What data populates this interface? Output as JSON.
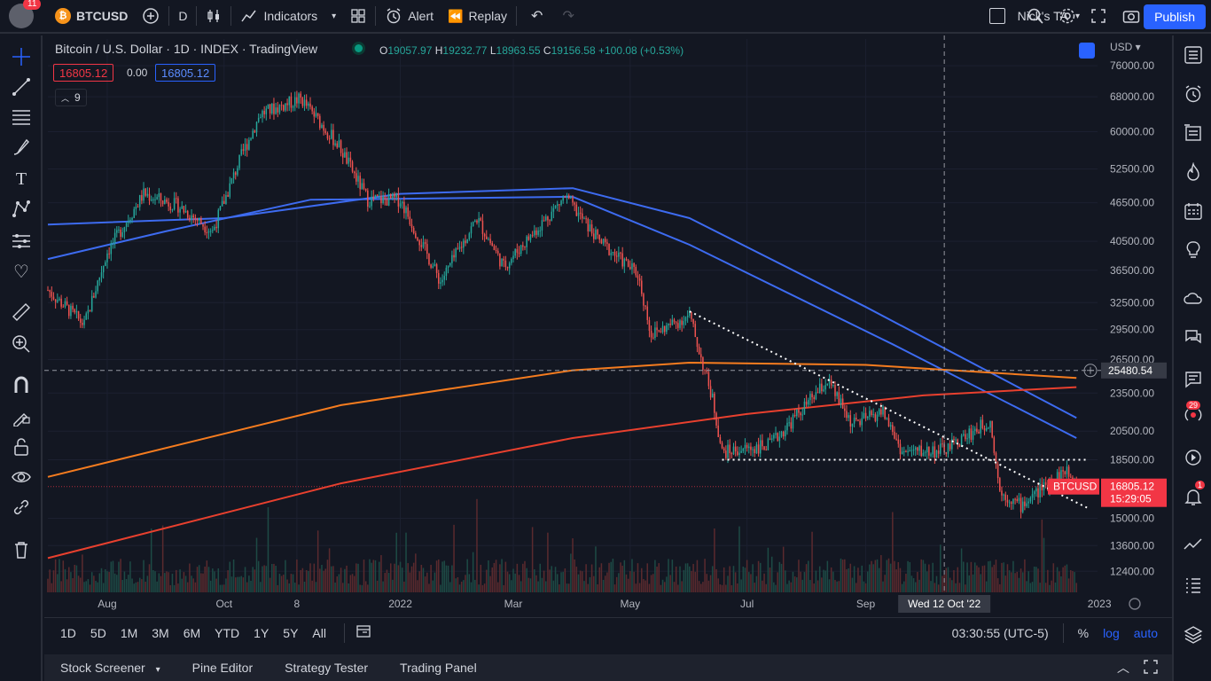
{
  "topbar": {
    "avatar_badge": "11",
    "symbol": "BTCUSD",
    "interval": "D",
    "indicators_label": "Indicators",
    "alert_label": "Alert",
    "replay_label": "Replay",
    "layout_name": "Nick's TA",
    "publish_label": "Publish"
  },
  "legend": {
    "title": "Bitcoin / U.S. Dollar · 1D · INDEX · TradingView",
    "o_key": "O",
    "o": "19057.97",
    "h_key": "H",
    "h": "19232.77",
    "l_key": "L",
    "l": "18963.55",
    "c_key": "C",
    "c": "19156.58",
    "change": "+100.08 (+0.53%)",
    "sell_price": "16805.12",
    "spread": "0.00",
    "buy_price": "16805.12",
    "indicator_count": "9"
  },
  "price_axis": {
    "currency": "USD",
    "ticks": [
      "76000.00",
      "68000.00",
      "60000.00",
      "52500.00",
      "46500.00",
      "40500.00",
      "36500.00",
      "32500.00",
      "29500.00",
      "26500.00",
      "23500.00",
      "20500.00",
      "18500.00",
      "15000.00",
      "13600.00",
      "12400.00"
    ],
    "crosshair_price": "25480.54",
    "symbol_tag": "BTCUSD",
    "last_price": "16805.12",
    "countdown": "15:29:05"
  },
  "time_axis": {
    "ticks": [
      "Aug",
      "Oct",
      "8",
      "2022",
      "Mar",
      "May",
      "Jul",
      "Sep",
      "2023"
    ],
    "crosshair_date": "Wed 12 Oct '22"
  },
  "bottom": {
    "ranges": [
      "1D",
      "5D",
      "1M",
      "3M",
      "6M",
      "YTD",
      "1Y",
      "5Y",
      "All"
    ],
    "clock": "03:30:55 (UTC-5)",
    "percent": "%",
    "log": "log",
    "auto": "auto"
  },
  "panels": {
    "stock_screener": "Stock Screener",
    "pine_editor": "Pine Editor",
    "strategy_tester": "Strategy Tester",
    "trading_panel": "Trading Panel"
  },
  "right_badges": {
    "streams": "29",
    "alerts": "1"
  },
  "colors": {
    "up": "#26a69a",
    "down": "#ef5350",
    "ma_blue": "#3d6bf0",
    "ma_orange": "#f57c1f",
    "ma_red": "#e8402e",
    "accent": "#2962ff"
  },
  "chart_data": {
    "type": "candlestick",
    "symbol": "BTCUSD",
    "interval": "1D",
    "x_range": [
      "2021-07-01",
      "2022-12-31"
    ],
    "y_scale": "log",
    "y_range": [
      11500,
      80000
    ],
    "close_path": [
      {
        "date": "2021-07-01",
        "value": 34000
      },
      {
        "date": "2021-07-20",
        "value": 30000
      },
      {
        "date": "2021-08-01",
        "value": 39000
      },
      {
        "date": "2021-08-20",
        "value": 48000
      },
      {
        "date": "2021-09-07",
        "value": 46000
      },
      {
        "date": "2021-09-25",
        "value": 42000
      },
      {
        "date": "2021-10-10",
        "value": 55000
      },
      {
        "date": "2021-10-20",
        "value": 64000
      },
      {
        "date": "2021-11-10",
        "value": 67500
      },
      {
        "date": "2021-11-30",
        "value": 57000
      },
      {
        "date": "2021-12-15",
        "value": 47000
      },
      {
        "date": "2022-01-01",
        "value": 47000
      },
      {
        "date": "2022-01-22",
        "value": 35000
      },
      {
        "date": "2022-02-10",
        "value": 44000
      },
      {
        "date": "2022-02-24",
        "value": 37000
      },
      {
        "date": "2022-03-28",
        "value": 47500
      },
      {
        "date": "2022-04-15",
        "value": 40500
      },
      {
        "date": "2022-05-05",
        "value": 36000
      },
      {
        "date": "2022-05-12",
        "value": 29000
      },
      {
        "date": "2022-06-01",
        "value": 31000
      },
      {
        "date": "2022-06-13",
        "value": 23000
      },
      {
        "date": "2022-06-18",
        "value": 19000
      },
      {
        "date": "2022-07-13",
        "value": 19500
      },
      {
        "date": "2022-08-12",
        "value": 24500
      },
      {
        "date": "2022-08-25",
        "value": 21000
      },
      {
        "date": "2022-09-10",
        "value": 22000
      },
      {
        "date": "2022-09-20",
        "value": 19000
      },
      {
        "date": "2022-10-12",
        "value": 19150
      },
      {
        "date": "2022-11-05",
        "value": 21300
      },
      {
        "date": "2022-11-10",
        "value": 16500
      },
      {
        "date": "2022-11-21",
        "value": 15700
      },
      {
        "date": "2022-12-05",
        "value": 17000
      },
      {
        "date": "2022-12-14",
        "value": 17800
      },
      {
        "date": "2022-12-20",
        "value": 16805
      }
    ],
    "moving_averages": [
      {
        "color": "blue",
        "points": [
          {
            "date": "2021-07-01",
            "value": 43000
          },
          {
            "date": "2021-10-01",
            "value": 44000
          },
          {
            "date": "2022-01-01",
            "value": 48000
          },
          {
            "date": "2022-04-01",
            "value": 49000
          },
          {
            "date": "2022-06-01",
            "value": 44000
          },
          {
            "date": "2022-09-01",
            "value": 32000
          },
          {
            "date": "2022-12-20",
            "value": 21500
          }
        ]
      },
      {
        "color": "blue",
        "points": [
          {
            "date": "2021-07-01",
            "value": 38000
          },
          {
            "date": "2021-09-01",
            "value": 42000
          },
          {
            "date": "2021-11-15",
            "value": 47000
          },
          {
            "date": "2022-04-01",
            "value": 47500
          },
          {
            "date": "2022-06-01",
            "value": 40000
          },
          {
            "date": "2022-09-15",
            "value": 28000
          },
          {
            "date": "2022-12-20",
            "value": 20000
          }
        ]
      },
      {
        "color": "orange",
        "points": [
          {
            "date": "2021-07-01",
            "value": 17400
          },
          {
            "date": "2021-12-01",
            "value": 22500
          },
          {
            "date": "2022-04-01",
            "value": 25500
          },
          {
            "date": "2022-06-01",
            "value": 26200
          },
          {
            "date": "2022-09-01",
            "value": 26000
          },
          {
            "date": "2022-12-20",
            "value": 24800
          }
        ]
      },
      {
        "color": "red",
        "points": [
          {
            "date": "2021-07-01",
            "value": 13000
          },
          {
            "date": "2021-12-01",
            "value": 17000
          },
          {
            "date": "2022-04-01",
            "value": 20000
          },
          {
            "date": "2022-07-01",
            "value": 21800
          },
          {
            "date": "2022-10-01",
            "value": 23300
          },
          {
            "date": "2022-12-20",
            "value": 24000
          }
        ]
      }
    ],
    "drawings": [
      {
        "type": "trendline",
        "from": {
          "date": "2022-06-01",
          "value": 31500
        },
        "to": {
          "date": "2022-12-27",
          "value": 15500
        }
      },
      {
        "type": "horizontal_segment",
        "from": {
          "date": "2022-06-18",
          "value": 18500
        },
        "to": {
          "date": "2022-12-26",
          "value": 18500
        }
      }
    ],
    "crosshair": {
      "date": "2022-10-12",
      "value": 25480.54
    },
    "last_price": 16805.12
  }
}
